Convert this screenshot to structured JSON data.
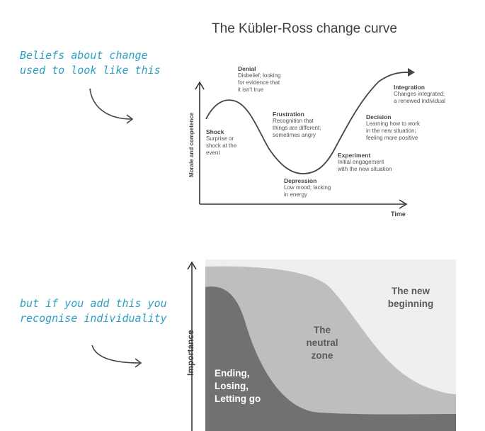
{
  "title": "The Kübler-Ross change curve",
  "note_top": [
    "Beliefs about change",
    "used to look like this"
  ],
  "note_bottom": [
    "but if you add this you",
    "recognise individuality"
  ],
  "curve": {
    "y_axis_label": "Morale and competence",
    "x_axis_label": "Time",
    "stages": [
      {
        "name": "Denial",
        "lines": [
          "Disbelief; looking",
          "for evidence that",
          "it isn't true"
        ]
      },
      {
        "name": "Shock",
        "lines": [
          "Surprise or",
          "shock at the",
          "event"
        ]
      },
      {
        "name": "Frustration",
        "lines": [
          "Recognition that",
          "things are different;",
          "sometimes angry"
        ]
      },
      {
        "name": "Depression",
        "lines": [
          "Low mood; lacking",
          "in energy"
        ]
      },
      {
        "name": "Experiment",
        "lines": [
          "Initial engagement",
          "with the new situation"
        ]
      },
      {
        "name": "Decision",
        "lines": [
          "Learning how to work",
          "in the new situation;",
          "feeling more positive"
        ]
      },
      {
        "name": "Integration",
        "lines": [
          "Changes integrated;",
          "a renewed individual"
        ]
      }
    ]
  },
  "zones": {
    "y_axis_label": "Importance",
    "ending": [
      "Ending,",
      "Losing,",
      "Letting go"
    ],
    "neutral": [
      "The",
      "neutral",
      "zone"
    ],
    "new": [
      "The new",
      "beginning"
    ]
  }
}
